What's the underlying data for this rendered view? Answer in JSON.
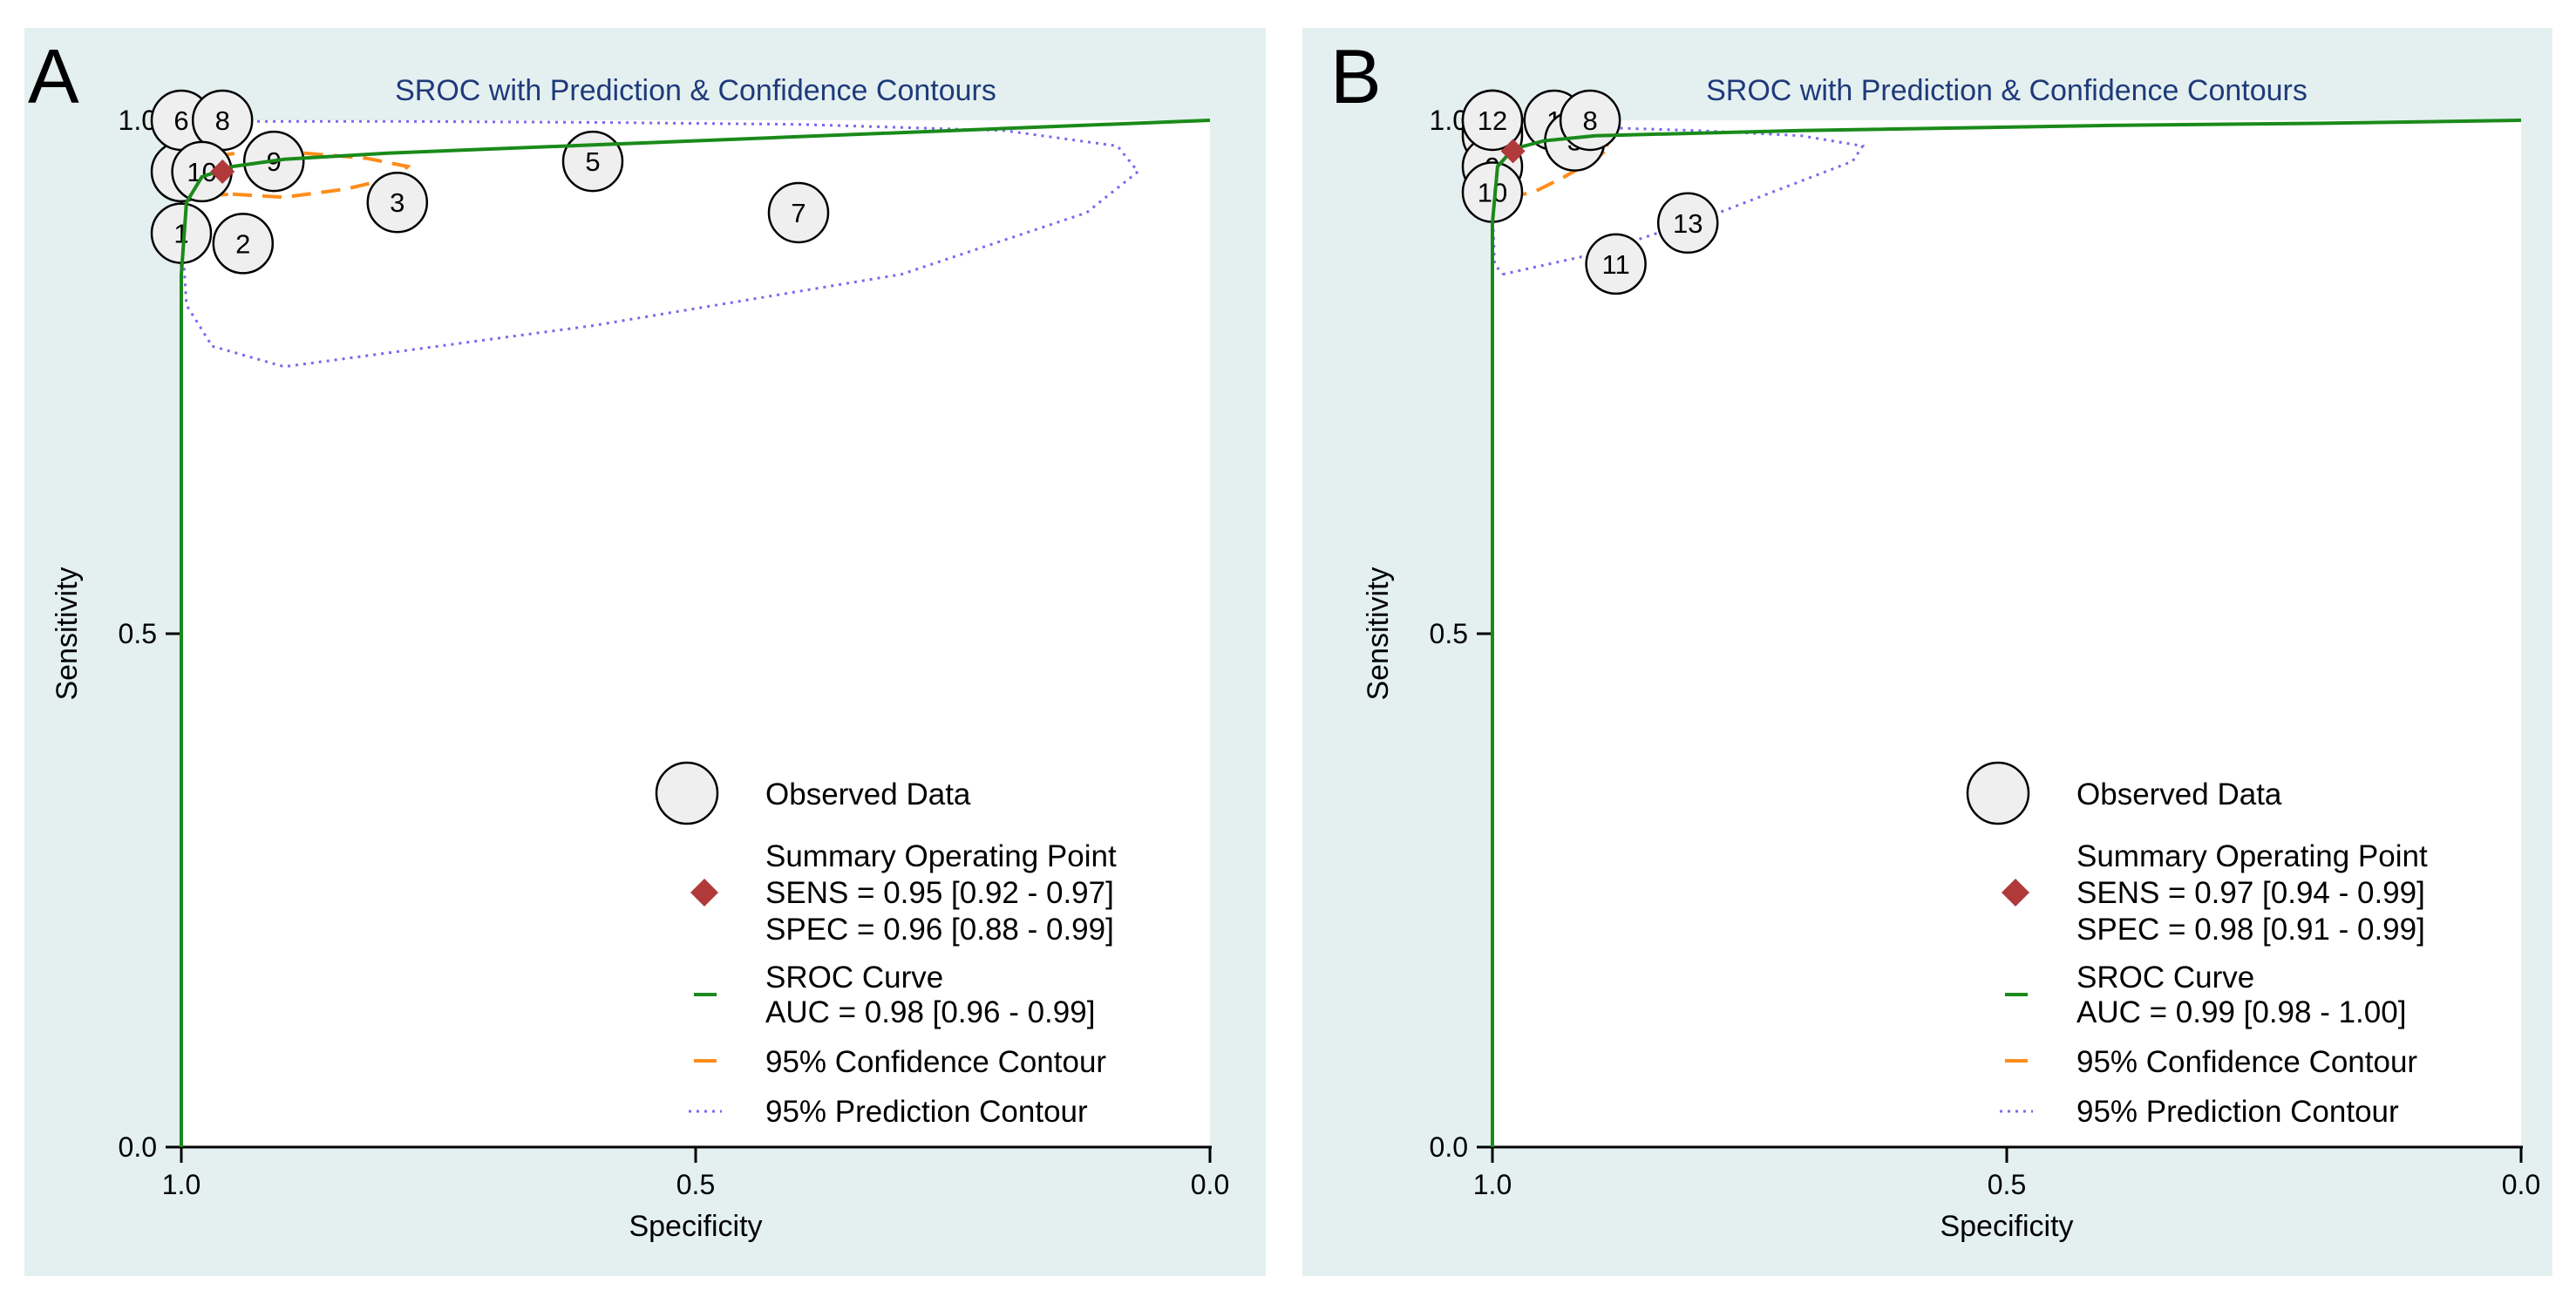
{
  "chart_data": [
    {
      "type": "scatter",
      "panel_label": "A",
      "title": "SROC with Prediction & Confidence Contours",
      "xlabel": "Specificity",
      "ylabel": "Sensitivity",
      "xlim": [
        1.0,
        0.0
      ],
      "ylim": [
        0.0,
        1.0
      ],
      "x_ticks": [
        "1.0",
        "0.5",
        "0.0"
      ],
      "y_ticks": [
        "0.0",
        "0.5",
        "1.0"
      ],
      "studies": [
        {
          "label": "1",
          "spec": 1.0,
          "sens": 0.89
        },
        {
          "label": "2",
          "spec": 0.94,
          "sens": 0.88
        },
        {
          "label": "3",
          "spec": 0.79,
          "sens": 0.92
        },
        {
          "label": "4",
          "spec": 1.0,
          "sens": 0.95
        },
        {
          "label": "5",
          "spec": 0.6,
          "sens": 0.96
        },
        {
          "label": "6",
          "spec": 1.0,
          "sens": 1.0
        },
        {
          "label": "7",
          "spec": 0.4,
          "sens": 0.91
        },
        {
          "label": "8",
          "spec": 0.96,
          "sens": 1.0
        },
        {
          "label": "9",
          "spec": 0.91,
          "sens": 0.96
        },
        {
          "label": "10",
          "spec": 0.98,
          "sens": 0.95
        }
      ],
      "summary_point": {
        "spec": 0.96,
        "sens": 0.95
      },
      "sroc_curve": [
        [
          1.0,
          0.0
        ],
        [
          1.0,
          0.85
        ],
        [
          0.995,
          0.92
        ],
        [
          0.98,
          0.945
        ],
        [
          0.95,
          0.955
        ],
        [
          0.9,
          0.962
        ],
        [
          0.8,
          0.968
        ],
        [
          0.6,
          0.976
        ],
        [
          0.4,
          0.984
        ],
        [
          0.2,
          0.992
        ],
        [
          0.0,
          1.0
        ]
      ],
      "confidence_contour": [
        [
          0.95,
          0.928
        ],
        [
          0.9,
          0.925
        ],
        [
          0.84,
          0.933
        ],
        [
          0.79,
          0.945
        ],
        [
          0.78,
          0.955
        ],
        [
          0.82,
          0.963
        ],
        [
          0.88,
          0.968
        ],
        [
          0.94,
          0.969
        ],
        [
          0.98,
          0.963
        ],
        [
          0.995,
          0.95
        ],
        [
          0.99,
          0.935
        ],
        [
          0.975,
          0.927
        ],
        [
          0.95,
          0.928
        ]
      ],
      "prediction_contour": [
        [
          0.97,
          0.78
        ],
        [
          0.9,
          0.76
        ],
        [
          0.6,
          0.8
        ],
        [
          0.3,
          0.85
        ],
        [
          0.12,
          0.91
        ],
        [
          0.07,
          0.95
        ],
        [
          0.09,
          0.975
        ],
        [
          0.2,
          0.99
        ],
        [
          0.4,
          0.996
        ],
        [
          0.6,
          0.998
        ],
        [
          0.8,
          0.999
        ],
        [
          0.95,
          0.999
        ],
        [
          0.995,
          0.99
        ],
        [
          1.0,
          0.9
        ],
        [
          0.995,
          0.82
        ],
        [
          0.97,
          0.78
        ]
      ],
      "legend": {
        "observed": "Observed Data",
        "summary_title": "Summary Operating Point",
        "sens": "SENS = 0.95 [0.92 - 0.97]",
        "spec": "SPEC = 0.96 [0.88 - 0.99]",
        "sroc_title": "SROC Curve",
        "auc": "AUC = 0.98 [0.96 - 0.99]",
        "confidence": "95% Confidence Contour",
        "prediction": "95% Prediction Contour"
      },
      "colors": {
        "panel_bg": "#e4f0f0",
        "sroc": "#1a8a1a",
        "confidence": "#ff8c1a",
        "prediction": "#7b68ee",
        "summary": "#b03a3a",
        "bubble_fill": "#efefef",
        "title": "#1f3a7a"
      }
    },
    {
      "type": "scatter",
      "panel_label": "B",
      "title": "SROC with Prediction & Confidence Contours",
      "xlabel": "Specificity",
      "ylabel": "Sensitivity",
      "xlim": [
        1.0,
        0.0
      ],
      "ylim": [
        0.0,
        1.0
      ],
      "x_ticks": [
        "1.0",
        "0.5",
        "0.0"
      ],
      "y_ticks": [
        "0.0",
        "0.5",
        "1.0"
      ],
      "studies": [
        {
          "label": "1",
          "spec": 0.94,
          "sens": 1.0
        },
        {
          "label": "2",
          "spec": 1.0,
          "sens": 1.0
        },
        {
          "label": "3",
          "spec": 0.92,
          "sens": 0.98
        },
        {
          "label": "4",
          "spec": 1.0,
          "sens": 1.0
        },
        {
          "label": "5",
          "spec": 1.0,
          "sens": 0.99
        },
        {
          "label": "6",
          "spec": 1.0,
          "sens": 0.985
        },
        {
          "label": "8",
          "spec": 0.905,
          "sens": 1.0
        },
        {
          "label": "9",
          "spec": 1.0,
          "sens": 0.955
        },
        {
          "label": "10",
          "spec": 1.0,
          "sens": 0.93
        },
        {
          "label": "11",
          "spec": 0.88,
          "sens": 0.86
        },
        {
          "label": "12",
          "spec": 1.0,
          "sens": 1.0
        },
        {
          "label": "13",
          "spec": 0.81,
          "sens": 0.9
        }
      ],
      "summary_point": {
        "spec": 0.98,
        "sens": 0.97
      },
      "sroc_curve": [
        [
          1.0,
          0.0
        ],
        [
          1.0,
          0.9
        ],
        [
          0.995,
          0.955
        ],
        [
          0.98,
          0.972
        ],
        [
          0.95,
          0.98
        ],
        [
          0.9,
          0.985
        ],
        [
          0.7,
          0.99
        ],
        [
          0.4,
          0.995
        ],
        [
          0.2,
          0.997
        ],
        [
          0.0,
          1.0
        ]
      ],
      "confidence_contour": [
        [
          0.985,
          0.925
        ],
        [
          0.96,
          0.93
        ],
        [
          0.93,
          0.945
        ],
        [
          0.9,
          0.962
        ],
        [
          0.885,
          0.975
        ],
        [
          0.92,
          0.987
        ],
        [
          0.96,
          0.99
        ],
        [
          0.99,
          0.985
        ],
        [
          1.0,
          0.96
        ],
        [
          0.997,
          0.935
        ],
        [
          0.985,
          0.925
        ]
      ],
      "prediction_contour": [
        [
          0.99,
          0.85
        ],
        [
          0.9,
          0.87
        ],
        [
          0.78,
          0.91
        ],
        [
          0.65,
          0.96
        ],
        [
          0.64,
          0.975
        ],
        [
          0.7,
          0.985
        ],
        [
          0.8,
          0.99
        ],
        [
          0.9,
          0.993
        ],
        [
          0.97,
          0.993
        ],
        [
          0.998,
          0.98
        ],
        [
          1.0,
          0.92
        ],
        [
          0.998,
          0.86
        ],
        [
          0.99,
          0.85
        ]
      ],
      "legend": {
        "observed": "Observed Data",
        "summary_title": "Summary Operating Point",
        "sens": "SENS = 0.97 [0.94 - 0.99]",
        "spec": "SPEC = 0.98 [0.91 - 0.99]",
        "sroc_title": "SROC Curve",
        "auc": "AUC = 0.99 [0.98 - 1.00]",
        "confidence": "95% Confidence Contour",
        "prediction": "95% Prediction Contour"
      },
      "colors": {
        "panel_bg": "#e4f0f0",
        "sroc": "#1a8a1a",
        "confidence": "#ff8c1a",
        "prediction": "#7b68ee",
        "summary": "#b03a3a",
        "bubble_fill": "#efefef",
        "title": "#1f3a7a"
      }
    }
  ]
}
